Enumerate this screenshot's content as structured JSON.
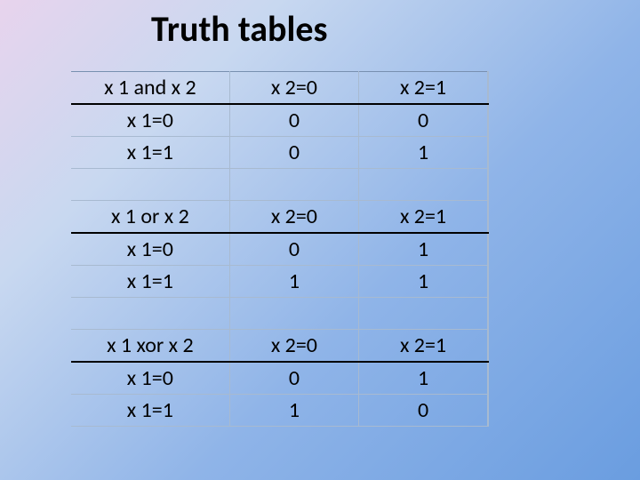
{
  "title": "Truth tables",
  "table": {
    "type": "table",
    "background": "transparent",
    "border_color": "#a8bad0",
    "header_underline_color": "#000000",
    "text_color": "#000000",
    "font_size": 24,
    "column_widths": [
      "38%",
      "31%",
      "31%"
    ],
    "sections": [
      {
        "header": [
          "x 1 and x 2",
          "x 2=0",
          "x 2=1"
        ],
        "rows": [
          [
            "x 1=0",
            "0",
            "0"
          ],
          [
            "x 1=1",
            "0",
            "1"
          ]
        ]
      },
      {
        "header": [
          "x 1 or x 2",
          "x 2=0",
          "x 2=1"
        ],
        "rows": [
          [
            "x 1=0",
            "0",
            "1"
          ],
          [
            "x 1=1",
            "1",
            "1"
          ]
        ]
      },
      {
        "header": [
          "x 1 xor x 2",
          "x 2=0",
          "x 2=1"
        ],
        "rows": [
          [
            "x 1=0",
            "0",
            "1"
          ],
          [
            "x 1=1",
            "1",
            "0"
          ]
        ]
      }
    ]
  }
}
